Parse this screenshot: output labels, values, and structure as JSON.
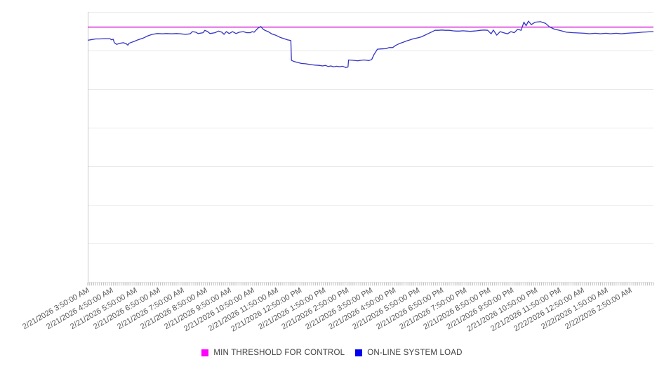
{
  "page": {
    "background": "#ffffff"
  },
  "legend": {
    "items": [
      {
        "label": "MIN THRESHOLD FOR CONTROL",
        "swatch_color": "#ff00ff"
      },
      {
        "label": "ON-LINE SYSTEM LOAD",
        "swatch_color": "#0000ee"
      }
    ]
  },
  "chart_data": {
    "type": "line",
    "title": "",
    "xlabel": "",
    "ylabel": "",
    "legend_position": "bottom-center",
    "grid": true,
    "grid_divisions": 7,
    "grid_color": "#e9e9e9",
    "axis_color": "#c9c9c9",
    "tick_color": "#bdbdbd",
    "label_color": "#595959",
    "minor_x_tick_count": 288,
    "y_axis_tick_labels_visible": false,
    "ylim": [
      0,
      100
    ],
    "x_tick_labels": [
      "2/21/2026 3:50:00 AM",
      "2/21/2026 4:50:00 AM",
      "2/21/2026 5:50:00 AM",
      "2/21/2026 6:50:00 AM",
      "2/21/2026 7:50:00 AM",
      "2/21/2026 8:50:00 AM",
      "2/21/2026 9:50:00 AM",
      "2/21/2026 10:50:00 AM",
      "2/21/2026 11:50:00 AM",
      "2/21/2026 12:50:00 PM",
      "2/21/2026 1:50:00 PM",
      "2/21/2026 2:50:00 PM",
      "2/21/2026 3:50:00 PM",
      "2/21/2026 4:50:00 PM",
      "2/21/2026 5:50:00 PM",
      "2/21/2026 6:50:00 PM",
      "2/21/2026 7:50:00 PM",
      "2/21/2026 8:50:00 PM",
      "2/21/2026 9:50:00 PM",
      "2/21/2026 10:50:00 PM",
      "2/21/2026 11:50:00 PM",
      "2/22/2026 12:50:00 AM",
      "2/22/2026 1:50:00 AM",
      "2/22/2026 2:50:00 AM"
    ],
    "x_tick_label_rotation_deg": -30,
    "series": [
      {
        "name": "MIN THRESHOLD FOR CONTROL",
        "style": "threshold-hline",
        "color": "#d926d9",
        "value": 94.5
      },
      {
        "name": "ON-LINE SYSTEM LOAD",
        "style": "line",
        "color": "#3434c4",
        "x_unit": "percent-of-24h-window-from-3:50AM",
        "points": [
          [
            0,
            89.5
          ],
          [
            0.5,
            89.7
          ],
          [
            1.4,
            90
          ],
          [
            2.1,
            90
          ],
          [
            3,
            90.1
          ],
          [
            3.9,
            90.1
          ],
          [
            4.2,
            89.7
          ],
          [
            4.5,
            89.9
          ],
          [
            4.7,
            88.6
          ],
          [
            5.1,
            88
          ],
          [
            5.7,
            88.4
          ],
          [
            6.3,
            88.6
          ],
          [
            6.8,
            88.2
          ],
          [
            7.1,
            87.7
          ],
          [
            7.3,
            88.4
          ],
          [
            8.2,
            89.1
          ],
          [
            8.9,
            89.7
          ],
          [
            9.8,
            90.3
          ],
          [
            10.7,
            91.2
          ],
          [
            11.4,
            91.7
          ],
          [
            12.3,
            92
          ],
          [
            13.2,
            91.9
          ],
          [
            13.9,
            92
          ],
          [
            14.8,
            91.9
          ],
          [
            15.7,
            92
          ],
          [
            16.4,
            91.9
          ],
          [
            17.3,
            91.7
          ],
          [
            18.1,
            91.9
          ],
          [
            18.5,
            92.7
          ],
          [
            19.1,
            92.5
          ],
          [
            19.5,
            92
          ],
          [
            20.4,
            92.3
          ],
          [
            20.7,
            93.2
          ],
          [
            21.2,
            92.7
          ],
          [
            21.6,
            92
          ],
          [
            22.5,
            92.3
          ],
          [
            23.1,
            92.9
          ],
          [
            23.7,
            92.5
          ],
          [
            24.1,
            91.7
          ],
          [
            24.5,
            92.7
          ],
          [
            25,
            92
          ],
          [
            25.6,
            92.7
          ],
          [
            26.2,
            92
          ],
          [
            26.8,
            92.5
          ],
          [
            27.5,
            92.7
          ],
          [
            28.1,
            92.3
          ],
          [
            28.7,
            92.3
          ],
          [
            29.1,
            92.7
          ],
          [
            29.4,
            92.5
          ],
          [
            30.1,
            94
          ],
          [
            30.6,
            94.6
          ],
          [
            30.9,
            93.8
          ],
          [
            31.3,
            93.2
          ],
          [
            31.9,
            92.7
          ],
          [
            32.5,
            91.9
          ],
          [
            33.2,
            91.4
          ],
          [
            34,
            90.6
          ],
          [
            34.7,
            90.1
          ],
          [
            35.3,
            89.7
          ],
          [
            35.9,
            89.4
          ],
          [
            36,
            82.1
          ],
          [
            36.5,
            81.6
          ],
          [
            37.1,
            81.3
          ],
          [
            37.8,
            80.9
          ],
          [
            38.5,
            80.8
          ],
          [
            39.1,
            80.6
          ],
          [
            39.8,
            80.4
          ],
          [
            40.2,
            80.3
          ],
          [
            40.9,
            80.2
          ],
          [
            41.5,
            80
          ],
          [
            42,
            80.2
          ],
          [
            42.5,
            79.8
          ],
          [
            43,
            80
          ],
          [
            43.5,
            79.7
          ],
          [
            44,
            79.9
          ],
          [
            44.5,
            79.7
          ],
          [
            45,
            79.9
          ],
          [
            45.3,
            79.7
          ],
          [
            45.6,
            79.4
          ],
          [
            46,
            79.6
          ],
          [
            46.1,
            82.2
          ],
          [
            46.8,
            82.1
          ],
          [
            47.7,
            81.9
          ],
          [
            48.4,
            82.1
          ],
          [
            48.9,
            82.2
          ],
          [
            49.7,
            82
          ],
          [
            50.2,
            82.4
          ],
          [
            50.6,
            84.2
          ],
          [
            51.2,
            86.2
          ],
          [
            51.9,
            86.3
          ],
          [
            52.7,
            86.4
          ],
          [
            53.3,
            86.8
          ],
          [
            53.9,
            86.8
          ],
          [
            54.5,
            87.7
          ],
          [
            55.2,
            88.4
          ],
          [
            55.8,
            88.8
          ],
          [
            56.4,
            89.3
          ],
          [
            57,
            89.7
          ],
          [
            57.6,
            90.1
          ],
          [
            58.3,
            90.4
          ],
          [
            58.9,
            90.7
          ],
          [
            59.5,
            91.3
          ],
          [
            60.1,
            91.9
          ],
          [
            60.7,
            92.5
          ],
          [
            61.4,
            93.2
          ],
          [
            62,
            93.2
          ],
          [
            62.6,
            93.3
          ],
          [
            63.2,
            93.2
          ],
          [
            63.9,
            93.2
          ],
          [
            64.5,
            93
          ],
          [
            65.1,
            92.9
          ],
          [
            65.7,
            92.9
          ],
          [
            66.3,
            93
          ],
          [
            67,
            92.9
          ],
          [
            67.6,
            92.8
          ],
          [
            68.2,
            92.9
          ],
          [
            68.8,
            93
          ],
          [
            69.4,
            93.2
          ],
          [
            70.1,
            93.3
          ],
          [
            70.7,
            93.2
          ],
          [
            71.3,
            91.9
          ],
          [
            71.7,
            93.3
          ],
          [
            72.3,
            91.4
          ],
          [
            72.9,
            92.7
          ],
          [
            73.5,
            92.3
          ],
          [
            74.2,
            91.9
          ],
          [
            74.8,
            92.7
          ],
          [
            75.4,
            92.3
          ],
          [
            76,
            93.6
          ],
          [
            76.6,
            93.2
          ],
          [
            77.1,
            96.2
          ],
          [
            77.5,
            94.9
          ],
          [
            77.9,
            96.6
          ],
          [
            78.4,
            95.3
          ],
          [
            79.1,
            96.2
          ],
          [
            80,
            96.4
          ],
          [
            80.9,
            95.8
          ],
          [
            81.6,
            94.5
          ],
          [
            82.5,
            93.6
          ],
          [
            83.4,
            93.2
          ],
          [
            84.6,
            92.5
          ],
          [
            85.8,
            92.3
          ],
          [
            86.8,
            92.2
          ],
          [
            87.8,
            92.1
          ],
          [
            88.7,
            91.9
          ],
          [
            89.7,
            92.1
          ],
          [
            90.6,
            91.9
          ],
          [
            91.6,
            92.1
          ],
          [
            92.4,
            91.9
          ],
          [
            93.4,
            92.1
          ],
          [
            94.3,
            91.9
          ],
          [
            95.3,
            92.1
          ],
          [
            96.1,
            92.2
          ],
          [
            97.1,
            92.3
          ],
          [
            98,
            92.5
          ],
          [
            98.9,
            92.6
          ],
          [
            99.6,
            92.7
          ],
          [
            100,
            92.7
          ]
        ]
      }
    ]
  }
}
